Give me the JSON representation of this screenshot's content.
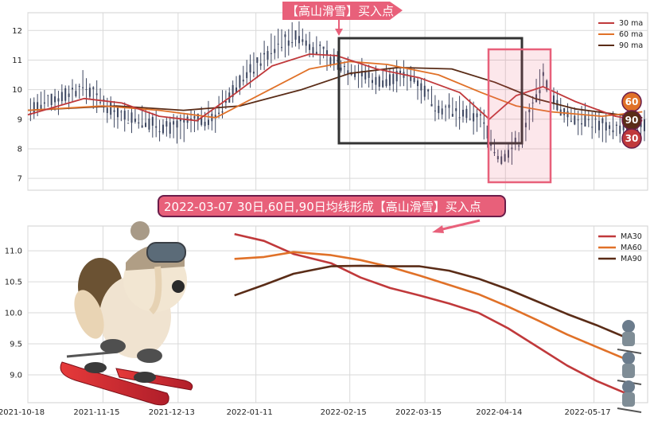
{
  "top_banner": {
    "text": "【高山滑雪】买入点",
    "color": "#e8607a"
  },
  "mid_banner": {
    "text": "2022-03-07 30日,60日,90日均线形成【高山滑雪】买入点",
    "color": "#e8607a",
    "border": "#6a1d4a"
  },
  "colors": {
    "ma30": "#c0393b",
    "ma60": "#e07128",
    "ma90": "#5a2c17",
    "candle": "#3c4660",
    "rect_dark": "#333333",
    "rect_pink": "#e8607a",
    "grid": "#d9d9d9"
  },
  "chart_data": [
    {
      "type": "line",
      "ylim": [
        6.6,
        12.6
      ],
      "yticks": [
        7,
        8,
        9,
        10,
        11,
        12
      ],
      "x_range": [
        "2021-10-18",
        "2022-06-06"
      ],
      "series": [
        {
          "name": "30 ma",
          "key": "ma30"
        },
        {
          "name": "60 ma",
          "key": "ma60"
        },
        {
          "name": "90 ma",
          "key": "ma90"
        }
      ],
      "end_labels": [
        "60",
        "90",
        "30"
      ],
      "legend_position": "top-right"
    },
    {
      "type": "line",
      "ylim": [
        8.55,
        11.4
      ],
      "yticks": [
        9.0,
        9.5,
        10.0,
        10.5,
        11.0
      ],
      "xticks": [
        "2021-10-18",
        "2021-11-15",
        "2021-12-13",
        "2022-01-11",
        "2022-02-15",
        "2022-03-15",
        "2022-04-14",
        "2022-05-17"
      ],
      "series": [
        {
          "name": "MA30",
          "key": "ma30",
          "x": [
            "2022-01-03",
            "2022-01-14",
            "2022-01-25",
            "2022-02-08",
            "2022-02-19",
            "2022-03-02",
            "2022-03-13",
            "2022-03-24",
            "2022-04-04",
            "2022-04-15",
            "2022-04-26",
            "2022-05-07",
            "2022-05-18",
            "2022-05-29"
          ],
          "values": [
            11.27,
            11.16,
            10.95,
            10.8,
            10.57,
            10.4,
            10.28,
            10.15,
            10.0,
            9.75,
            9.45,
            9.15,
            8.9,
            8.7
          ]
        },
        {
          "name": "MA60",
          "key": "ma60",
          "x": [
            "2022-01-03",
            "2022-01-14",
            "2022-01-25",
            "2022-02-08",
            "2022-02-19",
            "2022-03-02",
            "2022-03-13",
            "2022-03-24",
            "2022-04-04",
            "2022-04-15",
            "2022-04-26",
            "2022-05-07",
            "2022-05-18",
            "2022-05-29"
          ],
          "values": [
            10.87,
            10.9,
            10.98,
            10.93,
            10.85,
            10.74,
            10.6,
            10.45,
            10.3,
            10.1,
            9.88,
            9.65,
            9.45,
            9.25
          ]
        },
        {
          "name": "MA90",
          "key": "ma90",
          "x": [
            "2022-01-03",
            "2022-01-14",
            "2022-01-25",
            "2022-02-08",
            "2022-02-19",
            "2022-03-02",
            "2022-03-13",
            "2022-03-24",
            "2022-04-04",
            "2022-04-15",
            "2022-04-26",
            "2022-05-07",
            "2022-05-18",
            "2022-05-29"
          ],
          "values": [
            10.28,
            10.45,
            10.63,
            10.75,
            10.76,
            10.75,
            10.75,
            10.68,
            10.55,
            10.38,
            10.18,
            9.98,
            9.8,
            9.6
          ]
        }
      ],
      "legend_position": "top-right"
    }
  ]
}
